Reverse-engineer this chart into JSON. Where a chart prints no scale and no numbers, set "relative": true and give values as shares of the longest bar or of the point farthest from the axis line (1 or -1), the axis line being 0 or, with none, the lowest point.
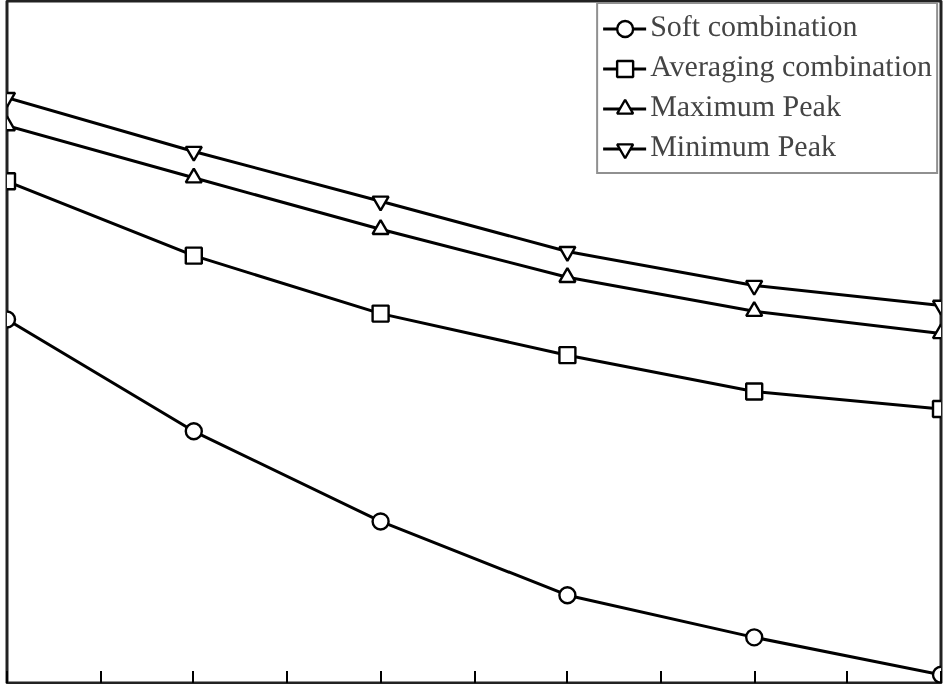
{
  "chart_data": {
    "type": "line",
    "relative": true,
    "categories": [
      null,
      null,
      null,
      null,
      null,
      null
    ],
    "grid": false,
    "legend": "top right",
    "tick_labels": false,
    "line_style": "solid",
    "series": [
      {
        "name": "Soft combination",
        "color": "#000000",
        "marker": "circle",
        "values": [
          0.621,
          0.43,
          0.276,
          0.15,
          0.078,
          0.014
        ]
      },
      {
        "name": "Averaging combination",
        "color": "#000000",
        "marker": "square",
        "values": [
          0.857,
          0.73,
          0.631,
          0.56,
          0.498,
          0.468
        ]
      },
      {
        "name": "Maximum Peak",
        "color": "#000000",
        "marker": "triangle",
        "values": [
          0.952,
          0.863,
          0.775,
          0.693,
          0.635,
          0.597
        ]
      },
      {
        "name": "Minimum Peak",
        "color": "#000000",
        "marker": "triangle",
        "values": [
          1,
          0.908,
          0.823,
          0.737,
          0.679,
          0.645
        ]
      }
    ]
  }
}
